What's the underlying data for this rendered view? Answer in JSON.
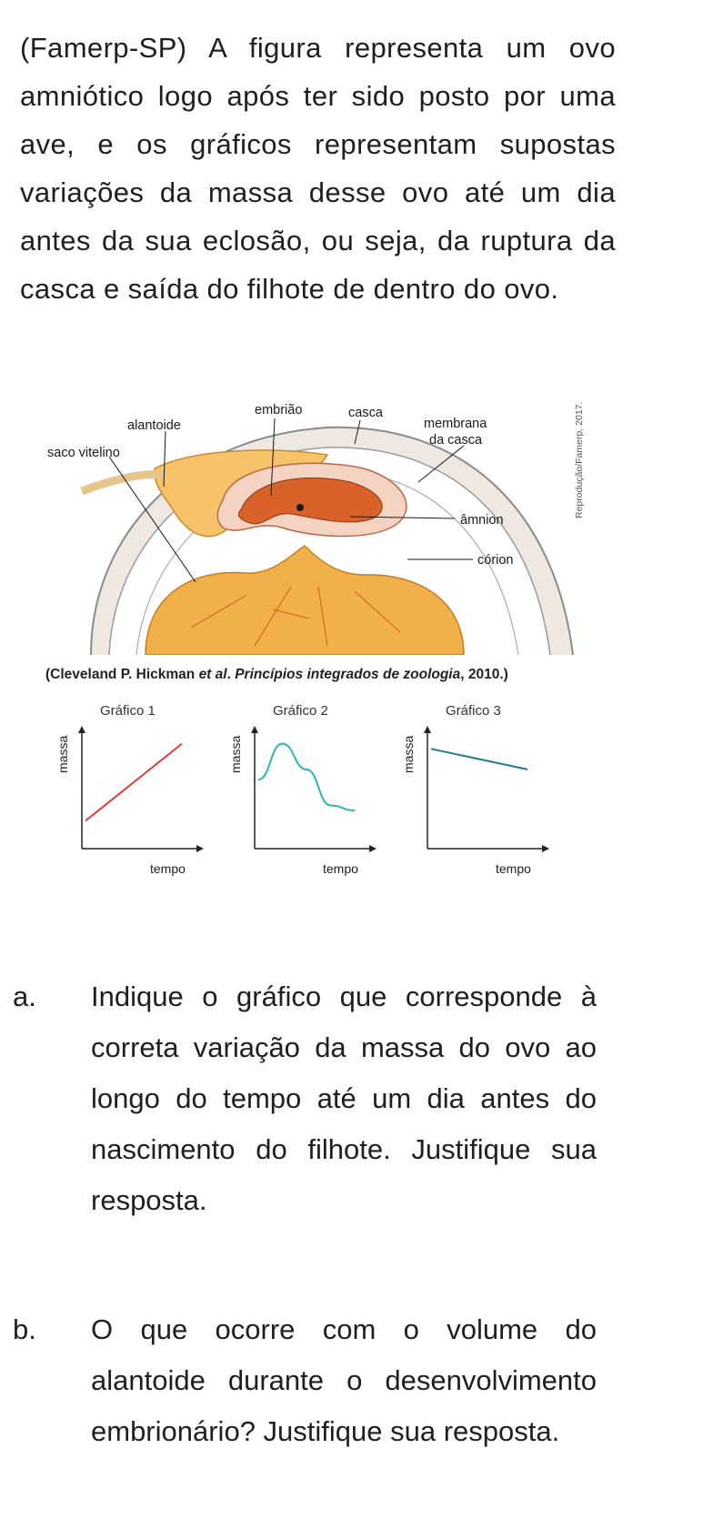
{
  "intro": "(Famerp-SP) A figura representa um ovo amniótico logo após ter sido posto por uma ave, e os gráficos representam supostas variações da massa desse ovo até um dia antes da sua eclosão, ou seja, da ruptura da casca e saída do filhote de dentro do ovo.",
  "figure": {
    "labels": {
      "embriao": "embrião",
      "casca": "casca",
      "alantoide": "alantoide",
      "saco_vitelino": "saco vitelino",
      "membrana_line1": "membrana",
      "membrana_line2": "da casca",
      "amnion": "âmnion",
      "corion": "córion"
    },
    "credit": "Reprodução/Famerp, 2017.",
    "citation_prefix": "(Cleveland P. Hickman ",
    "citation_etal": "et al",
    "citation_mid": ". ",
    "citation_title": "Princípios integrados de zoologia",
    "citation_suffix": ", 2010.)",
    "colors": {
      "yolk": "#f2b04a",
      "embryo": "#d9622b",
      "shell": "#f1ece6"
    }
  },
  "chart_data": [
    {
      "type": "line",
      "title": "Gráfico 1",
      "xlabel": "tempo",
      "ylabel": "massa",
      "x": [
        0,
        1
      ],
      "y": [
        0.2,
        0.95
      ],
      "color": "#e53935"
    },
    {
      "type": "line",
      "title": "Gráfico 2",
      "xlabel": "tempo",
      "ylabel": "massa",
      "x": [
        0,
        0.25,
        0.5,
        0.75,
        1
      ],
      "y": [
        0.6,
        0.95,
        0.7,
        0.35,
        0.3
      ],
      "color": "#2bb7a6"
    },
    {
      "type": "line",
      "title": "Gráfico 3",
      "xlabel": "tempo",
      "ylabel": "massa",
      "x": [
        0,
        1
      ],
      "y": [
        0.9,
        0.7
      ],
      "color": "#1f7f8f"
    }
  ],
  "questions": [
    {
      "letter": "a.",
      "text": "Indique o gráfico que corresponde à correta variação da massa do ovo ao longo do tempo até um dia antes do nascimento do filhote. Justifique sua resposta."
    },
    {
      "letter": "b.",
      "text": "O que ocorre com o volume do alantoide durante o desenvolvimento embrionário? Justifique sua resposta."
    }
  ]
}
